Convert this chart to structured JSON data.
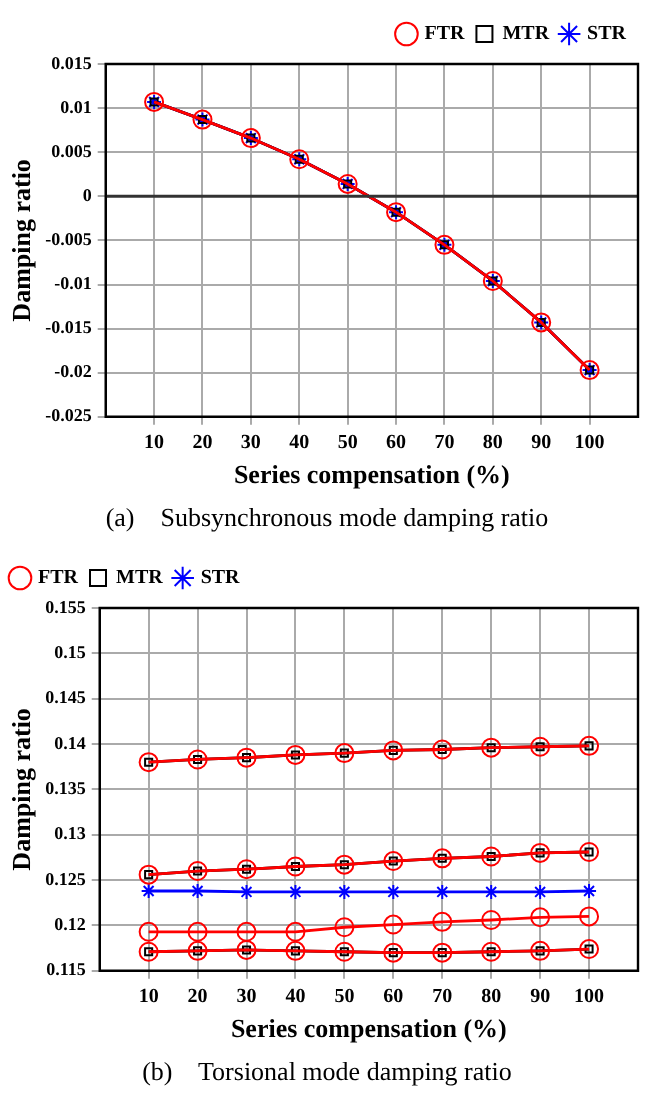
{
  "chart_data": [
    {
      "type": "line",
      "xlabel": "Series compensation (%)",
      "ylabel": "Damping ratio",
      "x": [
        10,
        20,
        30,
        40,
        50,
        60,
        70,
        80,
        90,
        100
      ],
      "xlim": [
        0,
        110
      ],
      "xticks": [
        10,
        20,
        30,
        40,
        50,
        60,
        70,
        80,
        90,
        100
      ],
      "ylim": [
        -0.025,
        0.015
      ],
      "yticks": [
        -0.025,
        -0.02,
        -0.015,
        -0.01,
        -0.005,
        0,
        0.005,
        0.01,
        0.015
      ],
      "grid": true,
      "legend": "top right",
      "line_style": "solid",
      "ref_lines": [
        {
          "axis": "y",
          "value": 0,
          "color": "#333333"
        }
      ],
      "series": [
        {
          "name": "STR",
          "color": "#0000ff",
          "marker": "cross",
          "values": [
            0.0107,
            0.0087,
            0.0066,
            0.0042,
            0.0014,
            -0.0018,
            -0.0055,
            -0.0096,
            -0.0143,
            -0.0197
          ]
        },
        {
          "name": "MTR",
          "color": "#000000",
          "marker": "square",
          "values": [
            0.0107,
            0.0087,
            0.0066,
            0.0042,
            0.0014,
            -0.0018,
            -0.0055,
            -0.0096,
            -0.0143,
            -0.0197
          ]
        },
        {
          "name": "FTR",
          "color": "#ff0000",
          "marker": "circle",
          "values": [
            0.0107,
            0.0087,
            0.0066,
            0.0042,
            0.0014,
            -0.0018,
            -0.0055,
            -0.0096,
            -0.0143,
            -0.0197
          ]
        }
      ],
      "annotations": [
        "(a)    Subsynchronous mode damping ratio"
      ]
    },
    {
      "type": "line",
      "xlabel": "Series compensation (%)",
      "ylabel": "Damping ratio",
      "x": [
        10,
        20,
        30,
        40,
        50,
        60,
        70,
        80,
        90,
        100
      ],
      "xlim": [
        0,
        110
      ],
      "xticks": [
        10,
        20,
        30,
        40,
        50,
        60,
        70,
        80,
        90,
        100
      ],
      "ylim": [
        0.115,
        0.155
      ],
      "yticks": [
        0.115,
        0.12,
        0.125,
        0.13,
        0.135,
        0.14,
        0.145,
        0.15,
        0.155
      ],
      "grid": true,
      "legend": "top left",
      "line_style": "solid",
      "series": [
        {
          "name": "STR",
          "color": "#0000ff",
          "marker": "cross",
          "values": [
            0.1238,
            0.1238,
            0.1237,
            0.1237,
            0.1237,
            0.1237,
            0.1237,
            0.1237,
            0.1237,
            0.1238
          ]
        },
        {
          "name": "MTR",
          "color": "#000000",
          "marker": "square",
          "values": [
            0.138,
            0.1383,
            0.1385,
            0.1388,
            0.139,
            0.1393,
            0.1394,
            0.1396,
            0.1397,
            0.1398
          ]
        },
        {
          "color": "#000000",
          "marker": "square",
          "values": [
            0.1256,
            0.126,
            0.1262,
            0.1265,
            0.1267,
            0.1271,
            0.1274,
            0.1276,
            0.128,
            0.1281
          ]
        },
        {
          "color": "#000000",
          "marker": "square",
          "values": [
            0.1171,
            0.1172,
            0.1173,
            0.1172,
            0.1171,
            0.117,
            0.117,
            0.1171,
            0.1172,
            0.1174
          ]
        },
        {
          "name": "FTR",
          "color": "#ff0000",
          "marker": "circle",
          "values": [
            0.138,
            0.1383,
            0.1385,
            0.1388,
            0.139,
            0.1393,
            0.1394,
            0.1396,
            0.1397,
            0.1398
          ]
        },
        {
          "color": "#ff0000",
          "marker": "circle",
          "values": [
            0.1256,
            0.126,
            0.1262,
            0.1265,
            0.1267,
            0.1271,
            0.1274,
            0.1276,
            0.128,
            0.1281
          ]
        },
        {
          "color": "#ff0000",
          "marker": "circle",
          "values": [
            0.1193,
            0.1193,
            0.1193,
            0.1193,
            0.1198,
            0.1201,
            0.1204,
            0.1206,
            0.1209,
            0.121
          ]
        },
        {
          "color": "#ff0000",
          "marker": "circle",
          "values": [
            0.1171,
            0.1172,
            0.1173,
            0.1172,
            0.1171,
            0.117,
            0.117,
            0.1171,
            0.1172,
            0.1174
          ]
        }
      ],
      "annotations": [
        "(b)    Torsional mode damping ratio"
      ]
    }
  ]
}
